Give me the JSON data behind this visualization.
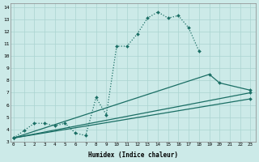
{
  "xlabel": "Humidex (Indice chaleur)",
  "bg_color": "#cceae8",
  "grid_color": "#aad4d0",
  "line_color": "#1a6e64",
  "xlim": [
    0,
    23
  ],
  "ylim": [
    3,
    14
  ],
  "xticks": [
    0,
    1,
    2,
    3,
    4,
    5,
    6,
    7,
    8,
    9,
    10,
    11,
    12,
    13,
    14,
    15,
    16,
    17,
    18,
    19,
    20,
    21,
    22,
    23
  ],
  "yticks": [
    3,
    4,
    5,
    6,
    7,
    8,
    9,
    10,
    11,
    12,
    13,
    14
  ],
  "line1_x": [
    0,
    1,
    2,
    3,
    4,
    5,
    6,
    7,
    8,
    9,
    10,
    11,
    12,
    13,
    14,
    15,
    16,
    17,
    18
  ],
  "line1_y": [
    3.3,
    3.9,
    4.5,
    4.5,
    4.3,
    4.5,
    3.7,
    3.5,
    6.6,
    5.2,
    10.8,
    10.8,
    11.8,
    13.1,
    13.6,
    13.1,
    13.3,
    12.3,
    10.4
  ],
  "line2_x": [
    0,
    19,
    20,
    23
  ],
  "line2_y": [
    3.3,
    8.5,
    7.8,
    7.2
  ],
  "line3_x": [
    0,
    23
  ],
  "line3_y": [
    3.3,
    7.0
  ],
  "line4_x": [
    0,
    23
  ],
  "line4_y": [
    3.3,
    6.5
  ]
}
